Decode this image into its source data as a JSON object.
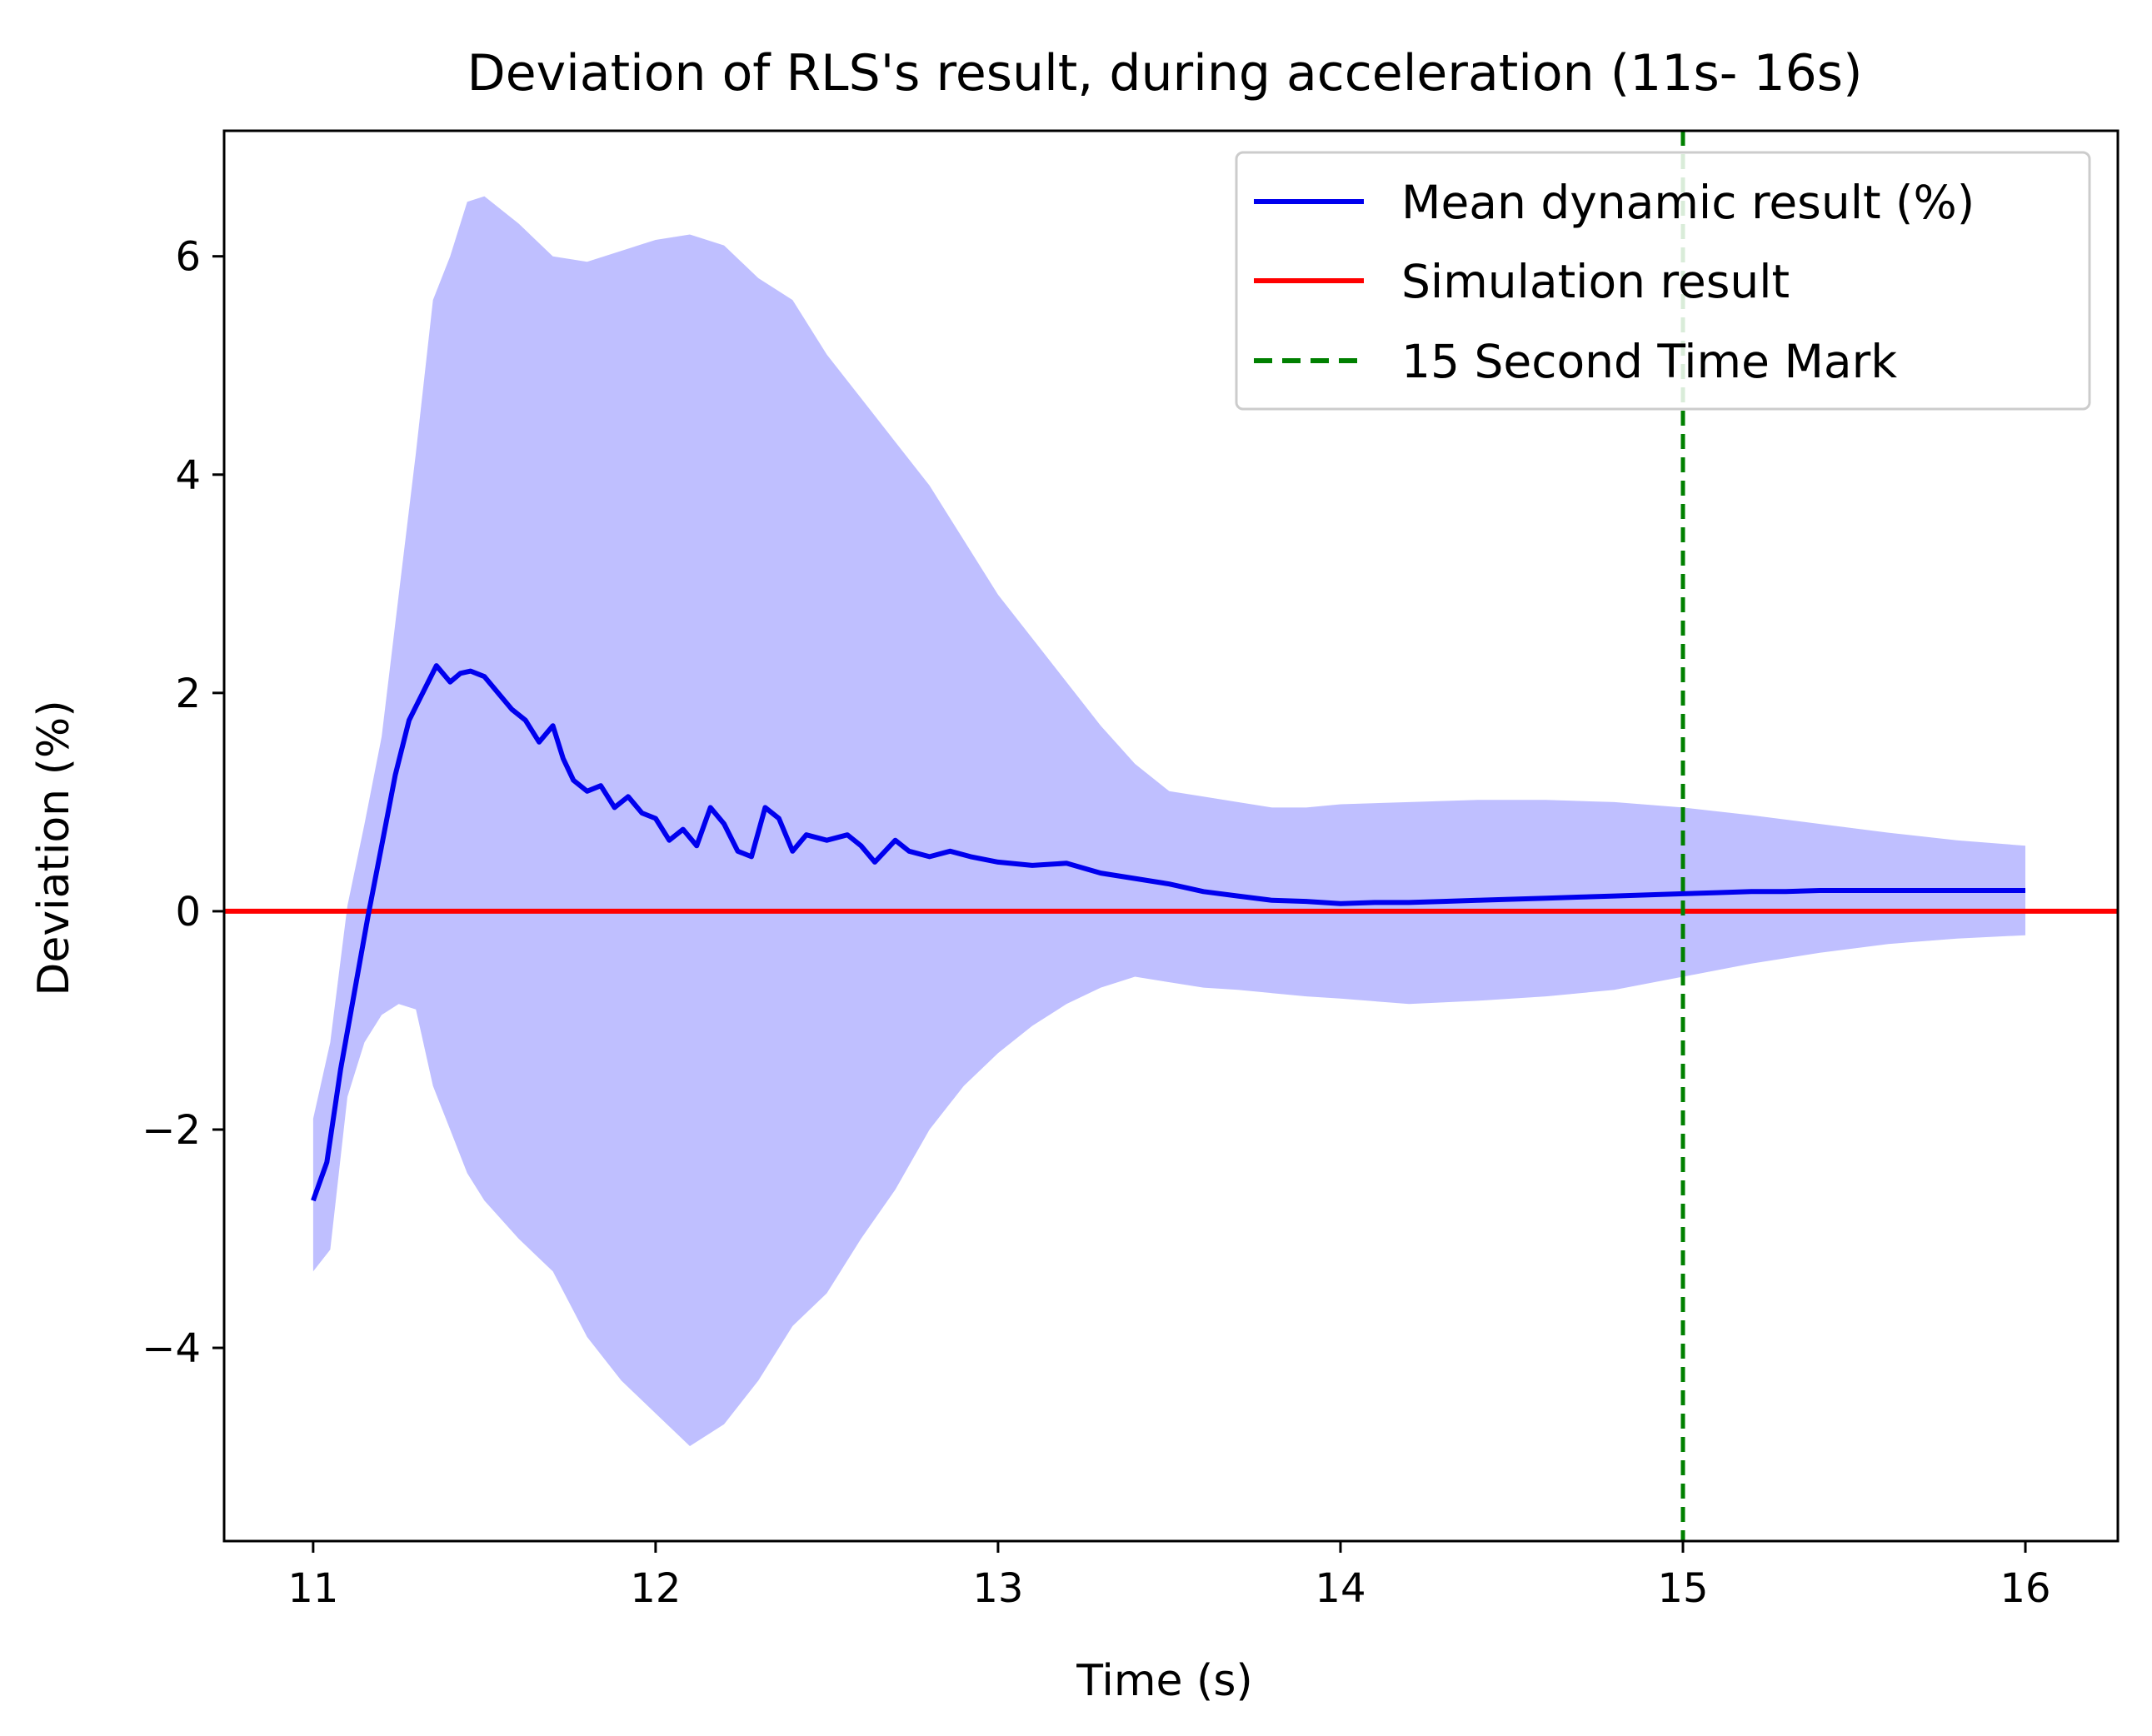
{
  "chart_data": {
    "type": "line",
    "title": "Deviation of RLS's result, during acceleration (11s- 16s)",
    "xlabel": "Time (s)",
    "ylabel": "Deviation (%)",
    "xlim": [
      10.74,
      16.27
    ],
    "ylim": [
      -5.77,
      7.15
    ],
    "grid": false,
    "legend_position": "top-right",
    "x_ticks": [
      {
        "value": 11,
        "label": "11"
      },
      {
        "value": 12,
        "label": "12"
      },
      {
        "value": 13,
        "label": "13"
      },
      {
        "value": 14,
        "label": "14"
      },
      {
        "value": 15,
        "label": "15"
      },
      {
        "value": 16,
        "label": "16"
      }
    ],
    "y_ticks": [
      {
        "value": -4,
        "label": "−4"
      },
      {
        "value": -2,
        "label": "−2"
      },
      {
        "value": 0,
        "label": "0"
      },
      {
        "value": 2,
        "label": "2"
      },
      {
        "value": 4,
        "label": "4"
      },
      {
        "value": 6,
        "label": "6"
      }
    ],
    "series": [
      {
        "name": "Mean dynamic result (%)",
        "color": "#0000ee",
        "x": [
          11.0,
          11.04,
          11.08,
          11.12,
          11.16,
          11.2,
          11.24,
          11.28,
          11.32,
          11.36,
          11.4,
          11.43,
          11.46,
          11.5,
          11.54,
          11.58,
          11.62,
          11.66,
          11.7,
          11.73,
          11.76,
          11.8,
          11.84,
          11.88,
          11.92,
          11.96,
          12.0,
          12.04,
          12.08,
          12.12,
          12.16,
          12.2,
          12.24,
          12.28,
          12.32,
          12.36,
          12.4,
          12.44,
          12.5,
          12.56,
          12.6,
          12.64,
          12.7,
          12.74,
          12.8,
          12.86,
          12.92,
          13.0,
          13.1,
          13.2,
          13.3,
          13.4,
          13.5,
          13.6,
          13.7,
          13.8,
          13.9,
          14.0,
          14.1,
          14.2,
          14.3,
          14.4,
          14.5,
          14.6,
          14.7,
          14.8,
          14.9,
          15.0,
          15.1,
          15.2,
          15.3,
          15.4,
          15.5,
          15.6,
          15.7,
          15.8,
          15.9,
          16.0
        ],
        "values": [
          -2.65,
          -2.3,
          -1.45,
          -0.75,
          -0.05,
          0.6,
          1.25,
          1.75,
          2.0,
          2.25,
          2.1,
          2.18,
          2.2,
          2.15,
          2.0,
          1.85,
          1.75,
          1.55,
          1.7,
          1.4,
          1.2,
          1.1,
          1.15,
          0.95,
          1.05,
          0.9,
          0.85,
          0.65,
          0.75,
          0.6,
          0.95,
          0.8,
          0.55,
          0.5,
          0.95,
          0.85,
          0.55,
          0.7,
          0.65,
          0.7,
          0.6,
          0.45,
          0.65,
          0.55,
          0.5,
          0.55,
          0.5,
          0.45,
          0.42,
          0.44,
          0.35,
          0.3,
          0.25,
          0.18,
          0.14,
          0.1,
          0.09,
          0.07,
          0.08,
          0.08,
          0.09,
          0.1,
          0.11,
          0.12,
          0.13,
          0.14,
          0.15,
          0.16,
          0.17,
          0.18,
          0.18,
          0.19,
          0.19,
          0.19,
          0.19,
          0.19,
          0.19,
          0.19
        ]
      },
      {
        "name": "Simulation result",
        "color": "#ff0000",
        "type": "hline",
        "y": 0
      },
      {
        "name": "15 Second Time Mark",
        "color": "#008000",
        "type": "vline",
        "style": "dashed",
        "x": 15
      }
    ],
    "band": {
      "description": "Spread of dynamic results (shaded)",
      "color": "#bfbfff",
      "x": [
        11.0,
        11.05,
        11.1,
        11.15,
        11.2,
        11.25,
        11.3,
        11.35,
        11.4,
        11.45,
        11.5,
        11.6,
        11.7,
        11.8,
        11.9,
        12.0,
        12.1,
        12.2,
        12.3,
        12.4,
        12.5,
        12.6,
        12.7,
        12.8,
        12.9,
        13.0,
        13.1,
        13.2,
        13.3,
        13.4,
        13.5,
        13.6,
        13.7,
        13.8,
        13.9,
        14.0,
        14.2,
        14.4,
        14.6,
        14.8,
        15.0,
        15.2,
        15.4,
        15.6,
        15.8,
        16.0
      ],
      "upper": [
        -1.9,
        -1.2,
        0.05,
        0.8,
        1.6,
        2.9,
        4.2,
        5.6,
        6.0,
        6.5,
        6.55,
        6.3,
        6.0,
        5.95,
        6.05,
        6.15,
        6.2,
        6.1,
        5.8,
        5.6,
        5.1,
        4.7,
        4.3,
        3.9,
        3.4,
        2.9,
        2.5,
        2.1,
        1.7,
        1.35,
        1.1,
        1.05,
        1.0,
        0.95,
        0.95,
        0.98,
        1.0,
        1.02,
        1.02,
        1.0,
        0.95,
        0.88,
        0.8,
        0.72,
        0.65,
        0.6
      ],
      "lower": [
        -3.3,
        -3.1,
        -1.7,
        -1.2,
        -0.95,
        -0.85,
        -0.9,
        -1.6,
        -2.0,
        -2.4,
        -2.65,
        -3.0,
        -3.3,
        -3.9,
        -4.3,
        -4.6,
        -4.9,
        -4.7,
        -4.3,
        -3.8,
        -3.5,
        -3.0,
        -2.55,
        -2.0,
        -1.6,
        -1.3,
        -1.05,
        -0.85,
        -0.7,
        -0.6,
        -0.65,
        -0.7,
        -0.72,
        -0.75,
        -0.78,
        -0.8,
        -0.85,
        -0.82,
        -0.78,
        -0.72,
        -0.6,
        -0.48,
        -0.38,
        -0.3,
        -0.25,
        -0.22
      ]
    }
  }
}
